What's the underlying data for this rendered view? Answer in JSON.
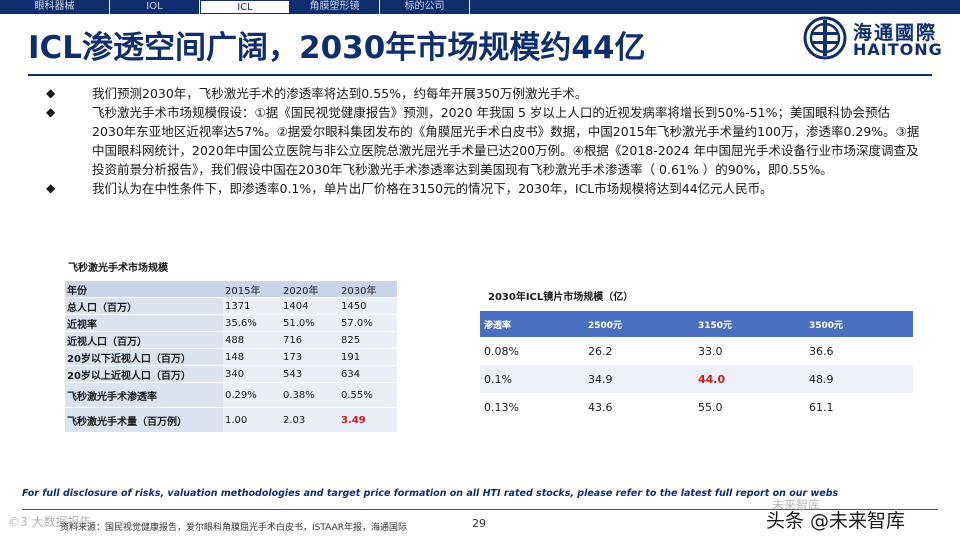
{
  "nav": {
    "tabs": [
      "眼科器械",
      "IOL",
      "ICL",
      "角膜塑形镜",
      "标的公司"
    ],
    "active": "ICL"
  },
  "title": "ICL渗透空间广阔，2030年市场规模约44亿",
  "logo": {
    "cn": "海通國際",
    "en": "HAITONG"
  },
  "bullets": [
    "我们预测2030年，飞秒激光手术的渗透率将达到0.55%，约每年开展350万例激光手术。",
    "飞秒激光手术市场规模假设：①据《国民视觉健康报告》预测，2020 年我国 5 岁以上人口的近视发病率将增长到50%-51%；美国眼科协会预估2030年东亚地区近视率达57%。②据爱尔眼科集团发布的《角膜屈光手术白皮书》数据，中国2015年飞秒激光手术量约100万，渗透率0.29%。③据中国眼科网统计，2020年中国公立医院与非公立医院总激光屈光手术量已达200万例。④根据《2018-2024 年中国屈光手术设备行业市场深度调查及投资前景分析报告》，我们假设中国在2030年飞秒激光手术渗透率达到美国现有飞秒激光手术渗透率（ 0.61% ）的90%，即0.55%。",
    "我们认为在中性条件下，即渗透率0.1%，单片出厂价格在3150元的情况下，2030年，ICL市场规模将达到44亿元人民币。"
  ],
  "table1": {
    "title": "飞秒激光手术市场规模",
    "header": [
      "年份",
      "2015年",
      "2020年",
      "2030年"
    ],
    "rows": [
      [
        "总人口（百万）",
        "1371",
        "1404",
        "1450"
      ],
      [
        "近视率",
        "35.6%",
        "51.0%",
        "57.0%"
      ],
      [
        "近视人口（百万）",
        "488",
        "716",
        "825"
      ],
      [
        "20岁以下近视人口（百万）",
        "148",
        "173",
        "191"
      ],
      [
        "20岁以上近视人口（百万）",
        "340",
        "543",
        "634"
      ],
      [
        "飞秒激光手术渗透率",
        "0.29%",
        "0.38%",
        "0.55%"
      ],
      [
        "飞秒激光手术量（百万例）",
        "1.00",
        "2.03",
        "3.49"
      ]
    ]
  },
  "table2": {
    "title": "2030年ICL镜片市场规模（亿）",
    "header": [
      "渗透率",
      "2500元",
      "3150元",
      "3500元"
    ],
    "rows": [
      [
        "0.08%",
        "26.2",
        "33.0",
        "36.6"
      ],
      [
        "0.1%",
        "34.9",
        "44.0",
        "48.9"
      ],
      [
        "0.13%",
        "43.6",
        "55.0",
        "61.1"
      ]
    ]
  },
  "disclaimer": "For full disclosure of risks, valuation methodologies and target price formation on all HTI rated stocks, please refer to the latest full report on our webs",
  "source": "资料来源：国民视觉健康报告，爱尔眼科角膜屈光手术白皮书，ISTAAR年报，海通国际",
  "page": "29",
  "watermarks": {
    "left": "©3 大数据报告",
    "right_small": "未来智库",
    "right_big": "头条 @未来智库"
  },
  "colors": {
    "brand": "#0e2e6e",
    "highlight": "#d11a1a",
    "table_header": "#4a6fbf"
  }
}
